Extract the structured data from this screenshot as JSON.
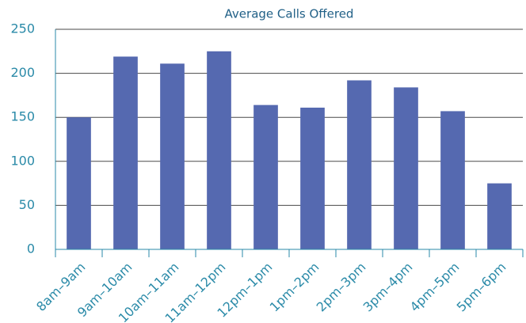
{
  "chart_data": {
    "type": "bar",
    "title": "Average Calls Offered",
    "categories": [
      "8am–9am",
      "9am–10am",
      "10am–11am",
      "11am–12pm",
      "12pm–1pm",
      "1pm–2pm",
      "2pm–3pm",
      "3pm–4pm",
      "4pm–5pm",
      "5pm–6pm"
    ],
    "values": [
      150,
      219,
      211,
      225,
      164,
      161,
      192,
      184,
      157,
      75
    ],
    "color": "#5569b0",
    "ylim": [
      0,
      250
    ],
    "yticks": [
      0,
      50,
      100,
      150,
      200,
      250
    ],
    "grid": true
  }
}
